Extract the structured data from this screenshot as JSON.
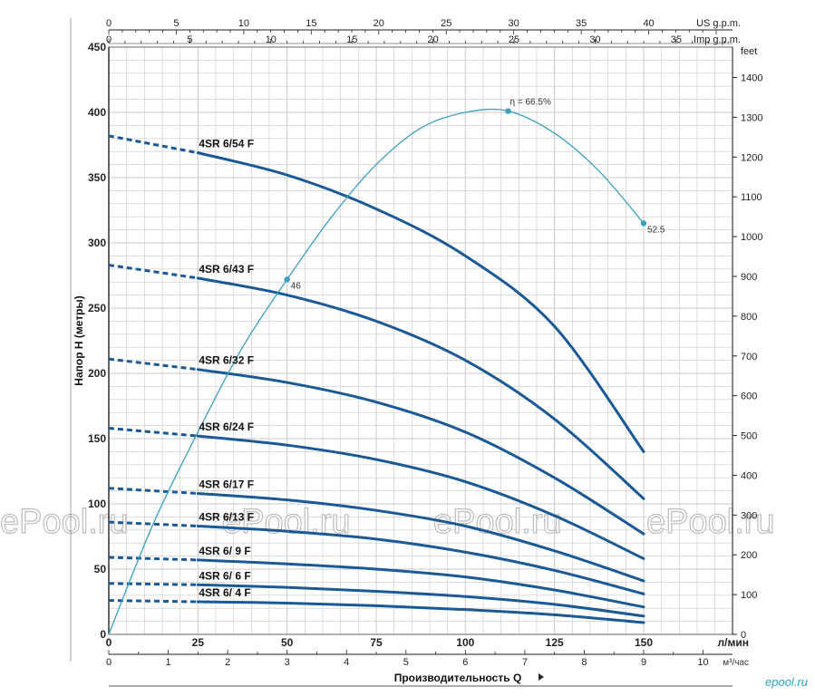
{
  "chart_data": {
    "type": "line",
    "ylabel": "Напор H (метры)",
    "xlabel": "Производительность Q",
    "x_unit_primary": "л/мин",
    "x_unit_m3": "м³/час",
    "x_unit_us": "US g.p.m.",
    "x_unit_imp": "Imp g.p.m.",
    "y_unit_right": "feet",
    "xlim": [
      0,
      150
    ],
    "ylim": [
      0,
      450
    ],
    "grid": true,
    "x_ticks": [
      0,
      25,
      50,
      75,
      100,
      125,
      150
    ],
    "y_ticks": [
      0,
      50,
      100,
      150,
      200,
      250,
      300,
      350,
      400,
      450
    ],
    "m3_ticks": [
      0,
      1,
      2,
      3,
      4,
      5,
      6,
      7,
      8,
      9,
      10
    ],
    "us_ticks": [
      0,
      5,
      10,
      15,
      20,
      25,
      30,
      35,
      40
    ],
    "imp_ticks": [
      0,
      5,
      10,
      15,
      20,
      25,
      30,
      35
    ],
    "feet_ticks": [
      0,
      100,
      200,
      300,
      400,
      500,
      600,
      700,
      800,
      900,
      1000,
      1100,
      1200,
      1300,
      1400
    ],
    "series": [
      {
        "name": "4SR 6/54 F",
        "dashed_until": 25,
        "points": [
          [
            0,
            382
          ],
          [
            25,
            369
          ],
          [
            50,
            352
          ],
          [
            75,
            326
          ],
          [
            100,
            290
          ],
          [
            125,
            236
          ],
          [
            150,
            140
          ]
        ]
      },
      {
        "name": "4SR 6/43 F",
        "dashed_until": 25,
        "points": [
          [
            0,
            283
          ],
          [
            25,
            273
          ],
          [
            50,
            260
          ],
          [
            75,
            240
          ],
          [
            100,
            210
          ],
          [
            125,
            165
          ],
          [
            150,
            104
          ]
        ]
      },
      {
        "name": "4SR 6/32 F",
        "dashed_until": 25,
        "points": [
          [
            0,
            211
          ],
          [
            25,
            203
          ],
          [
            50,
            193
          ],
          [
            75,
            178
          ],
          [
            100,
            155
          ],
          [
            125,
            120
          ],
          [
            150,
            77
          ]
        ]
      },
      {
        "name": "4SR 6/24 F",
        "dashed_until": 25,
        "points": [
          [
            0,
            158
          ],
          [
            25,
            152
          ],
          [
            50,
            145
          ],
          [
            75,
            134
          ],
          [
            100,
            117
          ],
          [
            125,
            91
          ],
          [
            150,
            58
          ]
        ]
      },
      {
        "name": "4SR 6/17 F",
        "dashed_until": 25,
        "points": [
          [
            0,
            112
          ],
          [
            25,
            108
          ],
          [
            50,
            103
          ],
          [
            75,
            95
          ],
          [
            100,
            83
          ],
          [
            125,
            64
          ],
          [
            150,
            41
          ]
        ]
      },
      {
        "name": "4SR 6/13 F",
        "dashed_until": 25,
        "points": [
          [
            0,
            86
          ],
          [
            25,
            83
          ],
          [
            50,
            79
          ],
          [
            75,
            73
          ],
          [
            100,
            63
          ],
          [
            125,
            49
          ],
          [
            150,
            31
          ]
        ]
      },
      {
        "name": "4SR 6/ 9 F",
        "dashed_until": 25,
        "points": [
          [
            0,
            59
          ],
          [
            25,
            57
          ],
          [
            50,
            54
          ],
          [
            75,
            50
          ],
          [
            100,
            44
          ],
          [
            125,
            34
          ],
          [
            150,
            21
          ]
        ]
      },
      {
        "name": "4SR 6/ 6 F",
        "dashed_until": 25,
        "points": [
          [
            0,
            39
          ],
          [
            25,
            38
          ],
          [
            50,
            36
          ],
          [
            75,
            33
          ],
          [
            100,
            29
          ],
          [
            125,
            23
          ],
          [
            150,
            14
          ]
        ]
      },
      {
        "name": "4SR 6/ 4 F",
        "dashed_until": 25,
        "points": [
          [
            0,
            26
          ],
          [
            25,
            25
          ],
          [
            50,
            24
          ],
          [
            75,
            22
          ],
          [
            100,
            19
          ],
          [
            125,
            15
          ],
          [
            150,
            9
          ]
        ]
      }
    ],
    "efficiency_curve": {
      "points": [
        [
          0,
          0
        ],
        [
          12.5,
          85
        ],
        [
          25,
          155
        ],
        [
          37.5,
          220
        ],
        [
          50,
          272
        ],
        [
          62.5,
          320
        ],
        [
          75,
          360
        ],
        [
          87.5,
          388
        ],
        [
          100,
          400
        ],
        [
          112,
          401
        ],
        [
          125,
          384
        ],
        [
          137.5,
          355
        ],
        [
          150,
          315
        ]
      ],
      "annotations": [
        {
          "x": 50,
          "y": 272,
          "label": "46"
        },
        {
          "x": 112,
          "y": 401,
          "label": "η = 66.5%"
        },
        {
          "x": 150,
          "y": 315,
          "label": "52.5"
        }
      ]
    }
  },
  "watermark": "ePool.ru",
  "logo": "epool.ru",
  "colors": {
    "curve": "#1b5996",
    "efficiency": "#3a9fc3",
    "grid": "#c8c8c8",
    "watermark": "#bdbdbd"
  }
}
